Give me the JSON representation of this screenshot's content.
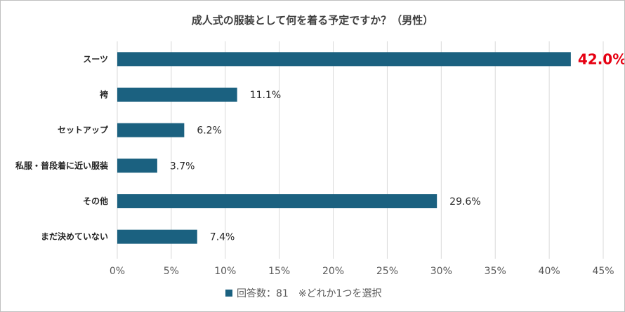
{
  "chart_data": {
    "type": "bar",
    "orientation": "horizontal",
    "title": "成人式の服装として何を着る予定ですか？（男性）",
    "categories": [
      "スーツ",
      "袴",
      "セットアップ",
      "私服・普段着に近い服装",
      "その他",
      "まだ決めていない"
    ],
    "values": [
      42.0,
      11.1,
      6.2,
      3.7,
      29.6,
      7.4
    ],
    "value_labels": [
      "42.0%",
      "11.1%",
      "6.2%",
      "3.7%",
      "29.6%",
      "7.4%"
    ],
    "highlight_index": 0,
    "x_ticks": [
      "0%",
      "5%",
      "10%",
      "15%",
      "20%",
      "25%",
      "30%",
      "35%",
      "40%",
      "45%"
    ],
    "xlim": [
      0,
      45
    ],
    "grid": true,
    "legend": {
      "label": "回答数：81　※どれか1つを選択",
      "position": "bottom"
    },
    "colors": {
      "bar": "#1b6180",
      "highlight_label": "#e60012",
      "grid": "#d9d9d9"
    }
  }
}
